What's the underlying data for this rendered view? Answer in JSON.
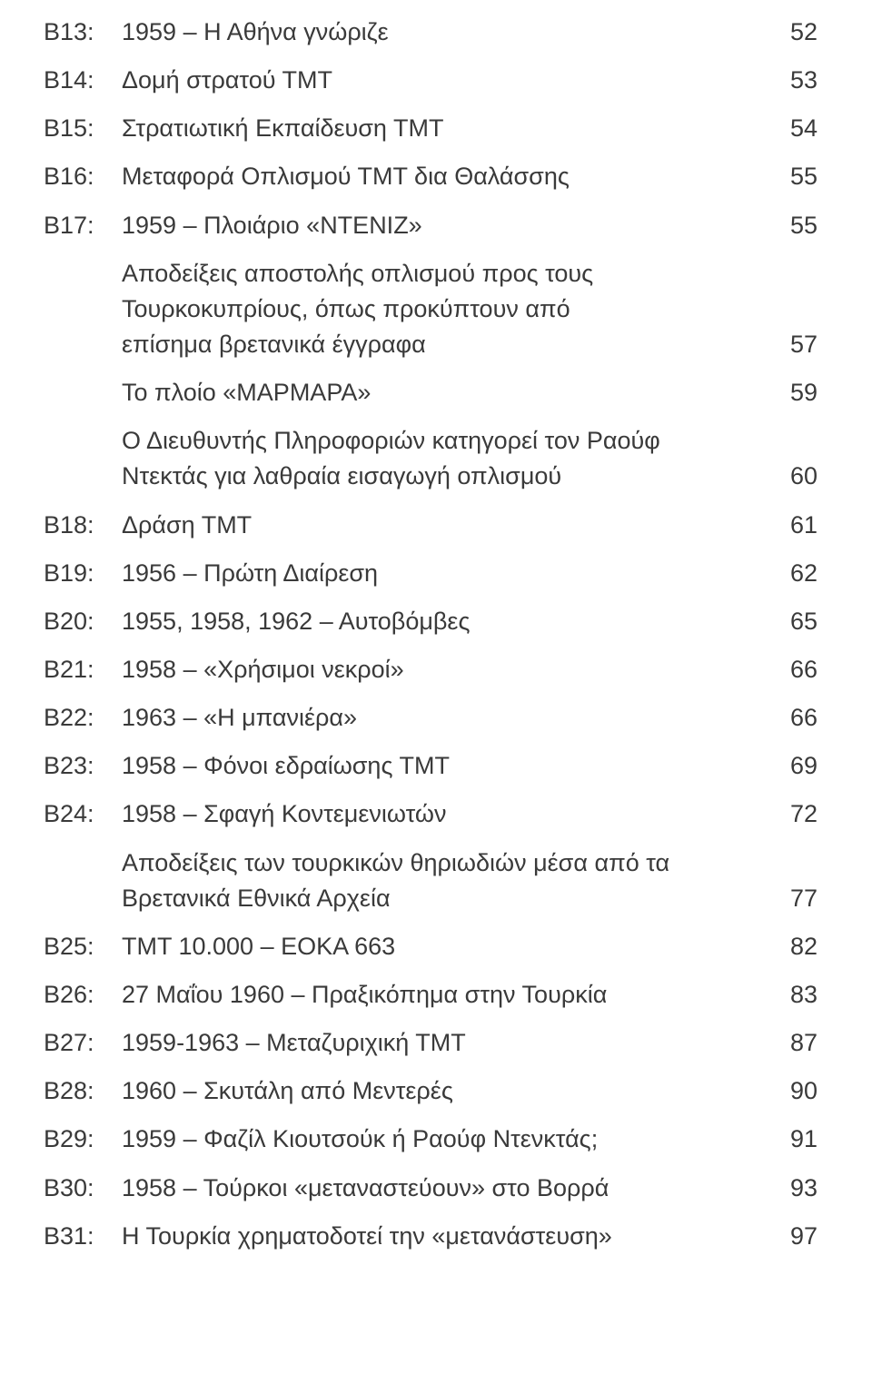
{
  "entries": [
    {
      "id": "B13:",
      "title": "1959 – Η Αθήνα γνώριζε",
      "page": "52",
      "hasId": true
    },
    {
      "id": "B14:",
      "title": "Δομή στρατού ΤΜΤ",
      "page": "53",
      "hasId": true
    },
    {
      "id": "B15:",
      "title": "Στρατιωτική Εκπαίδευση ΤΜΤ",
      "page": "54",
      "hasId": true
    },
    {
      "id": "B16:",
      "title": "Μεταφορά Οπλισμού ΤΜΤ δια Θαλάσσης",
      "page": "55",
      "hasId": true
    },
    {
      "id": "B17:",
      "title": "1959 – Πλοιάριο «ΝΤΕΝΙΖ»",
      "page": "55",
      "hasId": true
    },
    {
      "id": "",
      "titleLines": [
        "Αποδείξεις αποστολής οπλισμού προς τους",
        "Τουρκοκυπρίους, όπως προκύπτουν από"
      ],
      "lastLine": "επίσημα βρετανικά έγγραφα",
      "page": "57",
      "hasId": false,
      "multi": true
    },
    {
      "id": "",
      "title": "Το πλοίο «ΜΑΡΜΑΡΑ»",
      "page": "59",
      "hasId": false
    },
    {
      "id": "",
      "titleLines": [
        "Ο Διευθυντής Πληροφοριών κατηγορεί τον Ραούφ"
      ],
      "lastLine": "Ντεκτάς για λαθραία εισαγωγή οπλισμού",
      "page": "60",
      "hasId": false,
      "multi": true
    },
    {
      "id": "B18:",
      "title": "Δράση ΤΜΤ",
      "page": "61",
      "hasId": true
    },
    {
      "id": "B19:",
      "title": "1956 – Πρώτη Διαίρεση",
      "page": "62",
      "hasId": true
    },
    {
      "id": "B20:",
      "title": "1955, 1958, 1962 – Αυτοβόμβες",
      "page": "65",
      "hasId": true
    },
    {
      "id": "B21:",
      "title": "1958 – «Χρήσιμοι νεκροί»",
      "page": "66",
      "hasId": true
    },
    {
      "id": "B22:",
      "title": "1963 – «Η μπανιέρα»",
      "page": "66",
      "hasId": true
    },
    {
      "id": "B23:",
      "title": "1958 – Φόνοι εδραίωσης ΤΜΤ",
      "page": "69",
      "hasId": true
    },
    {
      "id": "B24:",
      "title": "1958 – Σφαγή Κοντεμενιωτών",
      "page": "72",
      "hasId": true
    },
    {
      "id": "",
      "titleLines": [
        "Αποδείξεις των τουρκικών θηριωδιών μέσα από τα"
      ],
      "lastLine": "Βρετανικά Εθνικά Αρχεία",
      "page": "77",
      "hasId": false,
      "multi": true
    },
    {
      "id": "B25:",
      "title": "ΤΜΤ 10.000 – ΕΟΚΑ 663",
      "page": "82",
      "hasId": true
    },
    {
      "id": "B26:",
      "title": "27 Μαΐου 1960 – Πραξικόπημα στην Τουρκία",
      "page": "83",
      "hasId": true
    },
    {
      "id": "B27:",
      "title": "1959-1963 – Μεταζυριχική ΤΜΤ",
      "page": "87",
      "hasId": true
    },
    {
      "id": "B28:",
      "title": "1960 – Σκυτάλη από Μεντερές",
      "page": "90",
      "hasId": true
    },
    {
      "id": "B29:",
      "title": "1959 – Φαζίλ Κιουτσούκ ή Ραούφ Ντενκτάς;",
      "page": "91",
      "hasId": true
    },
    {
      "id": "B30:",
      "title": "1958 – Τούρκοι «μεταναστεύουν» στο Βορρά",
      "page": "93",
      "hasId": true
    },
    {
      "id": "B31:",
      "title": "Η Τουρκία χρηματοδοτεί την «μετανάστευση»",
      "page": "97",
      "hasId": true
    }
  ]
}
